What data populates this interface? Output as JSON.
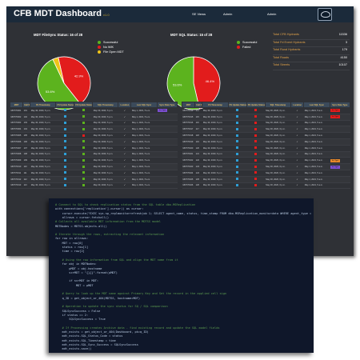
{
  "dashboard": {
    "title": "CFB MDT Dashboard",
    "title_suffix": "v1.0",
    "nav": [
      "SE Views",
      "Admin",
      "Admin"
    ],
    "logo_icon": "shield-logo-icon",
    "charts": [
      {
        "title": "MDT FileSync Status: 16 of 28",
        "legend": [
          {
            "label": "Successful",
            "color": "#5cb31e"
          },
          {
            "label": "No WIK",
            "color": "#e21c1c"
          },
          {
            "label": "File Open MDT",
            "color": "#f0c418"
          }
        ],
        "slices": [
          {
            "label": "42.9%",
            "value": 42.9,
            "color": "#e21c1c"
          },
          {
            "label": "53.6%",
            "value": 53.6,
            "color": "#5cb31e"
          },
          {
            "label": "",
            "value": 3.5,
            "color": "#f0c418"
          }
        ]
      },
      {
        "title": "MDT SQL Status: 15 of 28",
        "legend": [
          {
            "label": "Successful",
            "color": "#5cb31e"
          },
          {
            "label": "Failed",
            "color": "#e21c1c"
          }
        ],
        "slices": [
          {
            "label": "46.4%",
            "value": 46.4,
            "color": "#e21c1c"
          },
          {
            "label": "53.6%",
            "value": 53.6,
            "color": "#5cb31e"
          }
        ]
      }
    ],
    "stats": [
      {
        "label": "Total CFB Hydrants",
        "value": "11536"
      },
      {
        "label": "Total Fd Event Hydrants",
        "value": "3"
      },
      {
        "label": "Total Rural Hydrants",
        "value": "179"
      },
      {
        "label": "Total Roads",
        "value": "4150"
      },
      {
        "label": "Total Streets",
        "value": "10107"
      }
    ],
    "columns": [
      "MDT",
      "Call Sign",
      "FS Timestamp",
      "FS Update Status",
      "FS Update Status",
      "SQL Timestamp",
      "Location",
      "Last SQL Sync",
      "Sync Data Type"
    ],
    "left_rows": [
      {
        "mdt": "MDT70001",
        "call": "101",
        "fs_time": "May 30, 2020, 6 p.m.",
        "s1": "#2e9fd6",
        "s2": "#5cb31e",
        "sql_time": "May 30, 2020, 6 p.m.",
        "loc": "#5cb31e",
        "last": "May 1, 2021, 5 a.m.",
        "tag": "Inc Type",
        "tagc": "#7c4fd1"
      },
      {
        "mdt": "MDT70002",
        "call": "102",
        "fs_time": "May 30, 2020, 6 p.m.",
        "s1": "#2e9fd6",
        "s2": "#5cb31e",
        "sql_time": "May 30, 2020, 6 p.m.",
        "loc": "#5cb31e",
        "last": "May 1, 2021, 5 a.m.",
        "tag": "",
        "tagc": ""
      },
      {
        "mdt": "MDT70003",
        "call": "103",
        "fs_time": "May 30, 2020, 6 p.m.",
        "s1": "#2e9fd6",
        "s2": "#5cb31e",
        "sql_time": "May 30, 2020, 6 p.m.",
        "loc": "#5cb31e",
        "last": "May 1, 2021, 5 a.m.",
        "tag": "",
        "tagc": ""
      },
      {
        "mdt": "MDT70004",
        "call": "104",
        "fs_time": "May 30, 2020, 6 p.m.",
        "s1": "#2e9fd6",
        "s2": "#5cb31e",
        "sql_time": "May 30, 2020, 6 p.m.",
        "loc": "#5cb31e",
        "last": "May 1, 2021, 5 a.m.",
        "tag": "",
        "tagc": ""
      },
      {
        "mdt": "MDT70005",
        "call": "105",
        "fs_time": "May 30, 2020, 6 p.m.",
        "s1": "#2e9fd6",
        "s2": "#e21c1c",
        "sql_time": "May 30, 2020, 6 p.m.",
        "loc": "#5cb31e",
        "last": "May 1, 2021, 5 a.m.",
        "tag": "",
        "tagc": ""
      },
      {
        "mdt": "MDT70006",
        "call": "106",
        "fs_time": "May 30, 2020, 6 p.m.",
        "s1": "#2e9fd6",
        "s2": "#5cb31e",
        "sql_time": "May 30, 2020, 6 p.m.",
        "loc": "#5cb31e",
        "last": "May 1, 2021, 5 a.m.",
        "tag": "",
        "tagc": ""
      },
      {
        "mdt": "MDT70007",
        "call": "107",
        "fs_time": "May 30, 2020, 6 p.m.",
        "s1": "#2e9fd6",
        "s2": "#5cb31e",
        "sql_time": "May 30, 2020, 6 p.m.",
        "loc": "#5cb31e",
        "last": "May 1, 2021, 5 a.m.",
        "tag": "",
        "tagc": ""
      },
      {
        "mdt": "MDT70008",
        "call": "108",
        "fs_time": "May 30, 2020, 6 p.m.",
        "s1": "#2e9fd6",
        "s2": "#5cb31e",
        "sql_time": "May 30, 2020, 6 p.m.",
        "loc": "#5cb31e",
        "last": "May 1, 2021, 5 a.m.",
        "tag": "",
        "tagc": ""
      },
      {
        "mdt": "MDT70009",
        "call": "109",
        "fs_time": "May 30, 2020, 6 p.m.",
        "s1": "#2e9fd6",
        "s2": "#5cb31e",
        "sql_time": "May 30, 2020, 6 p.m.",
        "loc": "#5cb31e",
        "last": "May 1, 2021, 5 a.m.",
        "tag": "",
        "tagc": ""
      },
      {
        "mdt": "MDT70010",
        "call": "110",
        "fs_time": "May 30, 2020, 6 p.m.",
        "s1": "#2e9fd6",
        "s2": "#5cb31e",
        "sql_time": "May 30, 2020, 6 p.m.",
        "loc": "#5cb31e",
        "last": "May 1, 2021, 5 a.m.",
        "tag": "",
        "tagc": ""
      },
      {
        "mdt": "MDT70011",
        "call": "111",
        "fs_time": "May 30, 2020, 6 p.m.",
        "s1": "#2e9fd6",
        "s2": "#5cb31e",
        "sql_time": "May 30, 2020, 6 p.m.",
        "loc": "#5cb31e",
        "last": "May 1, 2021, 5 a.m.",
        "tag": "",
        "tagc": ""
      },
      {
        "mdt": "MDT70012",
        "call": "112",
        "fs_time": "May 30, 2020, 6 p.m.",
        "s1": "#2e9fd6",
        "s2": "#5cb31e",
        "sql_time": "May 30, 2020, 6 p.m.",
        "loc": "#5cb31e",
        "last": "May 1, 2021, 5 a.m.",
        "tag": "",
        "tagc": ""
      },
      {
        "mdt": "MDT70013",
        "call": "113",
        "fs_time": "May 30, 2020, 6 p.m.",
        "s1": "#2e9fd6",
        "s2": "#5cb31e",
        "sql_time": "May 30, 2020, 6 p.m.",
        "loc": "#5cb31e",
        "last": "May 1, 2021, 5 a.m.",
        "tag": "",
        "tagc": ""
      }
    ],
    "right_rows": [
      {
        "mdt": "MDT70014",
        "call": "114",
        "fs_time": "May 30, 2020, 6 p.m.",
        "s1": "#2e9fd6",
        "s2": "#e21c1c",
        "sql_time": "May 30, 2020, 6 p.m.",
        "loc": "#5cb31e",
        "last": "May 1, 2021, 5 a.m.",
        "tag": "Inc Type",
        "tagc": "#e21c1c"
      },
      {
        "mdt": "MDT70015",
        "call": "115",
        "fs_time": "May 30, 2020, 6 p.m.",
        "s1": "#2e9fd6",
        "s2": "#e21c1c",
        "sql_time": "May 30, 2020, 6 p.m.",
        "loc": "#5cb31e",
        "last": "May 1, 2021, 5 a.m.",
        "tag": "Inc Type",
        "tagc": "#e21c1c"
      },
      {
        "mdt": "MDT70016",
        "call": "116",
        "fs_time": "May 30, 2020, 6 p.m.",
        "s1": "#2e9fd6",
        "s2": "#e21c1c",
        "sql_time": "May 30, 2020, 6 p.m.",
        "loc": "#5cb31e",
        "last": "May 1, 2021, 5 a.m.",
        "tag": "",
        "tagc": ""
      },
      {
        "mdt": "MDT70017",
        "call": "117",
        "fs_time": "May 30, 2020, 6 p.m.",
        "s1": "#2e9fd6",
        "s2": "#e21c1c",
        "sql_time": "May 30, 2020, 6 p.m.",
        "loc": "#5cb31e",
        "last": "May 1, 2021, 5 a.m.",
        "tag": "",
        "tagc": ""
      },
      {
        "mdt": "MDT70018",
        "call": "118",
        "fs_time": "May 30, 2020, 6 p.m.",
        "s1": "#2e9fd6",
        "s2": "#e21c1c",
        "sql_time": "May 30, 2020, 6 p.m.",
        "loc": "#5cb31e",
        "last": "May 1, 2021, 5 a.m.",
        "tag": "",
        "tagc": ""
      },
      {
        "mdt": "MDT70019",
        "call": "119",
        "fs_time": "May 30, 2020, 6 p.m.",
        "s1": "#2e9fd6",
        "s2": "#e21c1c",
        "sql_time": "May 30, 2020, 6 p.m.",
        "loc": "#5cb31e",
        "last": "May 1, 2021, 5 a.m.",
        "tag": "",
        "tagc": ""
      },
      {
        "mdt": "MDT70020",
        "call": "120",
        "fs_time": "May 30, 2020, 6 p.m.",
        "s1": "#2e9fd6",
        "s2": "#e21c1c",
        "sql_time": "May 30, 2020, 6 p.m.",
        "loc": "#5cb31e",
        "last": "May 1, 2021, 5 a.m.",
        "tag": "",
        "tagc": ""
      },
      {
        "mdt": "MDT70021",
        "call": "121",
        "fs_time": "May 30, 2020, 6 p.m.",
        "s1": "#2e9fd6",
        "s2": "#e21c1c",
        "sql_time": "May 30, 2020, 6 p.m.",
        "loc": "#5cb31e",
        "last": "May 1, 2021, 5 a.m.",
        "tag": "",
        "tagc": ""
      },
      {
        "mdt": "MDT70022",
        "call": "122",
        "fs_time": "May 30, 2020, 6 p.m.",
        "s1": "#2e9fd6",
        "s2": "#e21c1c",
        "sql_time": "May 30, 2020, 6 p.m.",
        "loc": "#5cb31e",
        "last": "May 1, 2021, 5 a.m.",
        "tag": "Inc Type",
        "tagc": "#e8882a"
      },
      {
        "mdt": "MDT70023",
        "call": "123",
        "fs_time": "May 30, 2020, 6 p.m.",
        "s1": "#2e9fd6",
        "s2": "#e21c1c",
        "sql_time": "May 30, 2020, 6 p.m.",
        "loc": "#5cb31e",
        "last": "May 1, 2021, 5 a.m.",
        "tag": "Inc Type",
        "tagc": "#7c4fd1"
      },
      {
        "mdt": "MDT70024",
        "call": "124",
        "fs_time": "May 30, 2020, 6 p.m.",
        "s1": "#2e9fd6",
        "s2": "#e21c1c",
        "sql_time": "May 30, 2020, 6 p.m.",
        "loc": "#5cb31e",
        "last": "May 1, 2021, 5 a.m.",
        "tag": "",
        "tagc": ""
      },
      {
        "mdt": "MDT70025",
        "call": "125",
        "fs_time": "May 30, 2020, 6 p.m.",
        "s1": "#2e9fd6",
        "s2": "#e21c1c",
        "sql_time": "May 30, 2020, 6 p.m.",
        "loc": "#5cb31e",
        "last": "May 1, 2021, 5 a.m.",
        "tag": "",
        "tagc": ""
      },
      {
        "mdt": "MDT70026",
        "call": "126",
        "fs_time": "May 30, 2020, 6 p.m.",
        "s1": "#2e9fd6",
        "s2": "#e21c1c",
        "sql_time": "May 30, 2020, 6 p.m.",
        "loc": "#5cb31e",
        "last": "May 1, 2021, 5 a.m.",
        "tag": "",
        "tagc": ""
      }
    ]
  },
  "code": {
    "lines": [
      {
        "t": "# Connect to SQL to check replication status from the SQL table dbo.MSReplication",
        "k": "com"
      },
      {
        "t": "with connections['replication'].cursor() as cursor:",
        "k": "code"
      },
      {
        "t": "    cursor.execute(\"EXEC sys.sp_replmonitorrefreshjob 1; SELECT agent_name, status, time_stamp FROM dbo.MSReplication_monitordata WHERE agent_type = '3'\")",
        "k": "code"
      },
      {
        "t": "    allrows = cursor.fetchall()",
        "k": "code"
      },
      {
        "t": "# Collects all available MDT information from the MDTSS model",
        "k": "com"
      },
      {
        "t": "MDTNodes = MDTSS.objects.all()",
        "k": "code"
      },
      {
        "t": "",
        "k": "code"
      },
      {
        "t": "# Iterate through the rows, extracting the relevant information",
        "k": "com"
      },
      {
        "t": "for row in allrows:",
        "k": "code"
      },
      {
        "t": "    MDT = row[0]",
        "k": "code"
      },
      {
        "t": "    status = row[1]",
        "k": "code"
      },
      {
        "t": "    time = row[2]",
        "k": "code"
      },
      {
        "t": "",
        "k": "code"
      },
      {
        "t": "    # Using the row information from SQL and align the MDT name from it",
        "k": "com"
      },
      {
        "t": "    for obj in MDTNodes:",
        "k": "code"
      },
      {
        "t": "        pMDT = obj.hostname",
        "k": "code"
      },
      {
        "t": "        scrMDT = \"{}{}\".format(pMDT)",
        "k": "code"
      },
      {
        "t": "",
        "k": "code"
      },
      {
        "t": "        if scrMDT in MDT:",
        "k": "code"
      },
      {
        "t": "            MDT = pMDT",
        "k": "code"
      },
      {
        "t": "",
        "k": "code"
      },
      {
        "t": "    # Query to look up the MDT name against Primary Key and Set the record in the applied cell sign",
        "k": "com"
      },
      {
        "t": "    q_ID = get_object_or_404(MDTSS, hostname=MDT)",
        "k": "code"
      },
      {
        "t": "",
        "k": "code"
      },
      {
        "t": "    # Operation to update the sync status for SQ / SQL comparison",
        "k": "com"
      },
      {
        "t": "    SQLSyncSuccess = False",
        "k": "code"
      },
      {
        "t": "    if status == 2:",
        "k": "code"
      },
      {
        "t": "        SQLSyncSuccess = True",
        "k": "code"
      },
      {
        "t": "",
        "k": "code"
      },
      {
        "t": "    # If Processing creates Archive data - find existing record and update the SQL model fields",
        "k": "com"
      },
      {
        "t": "    mdt_exists = get_object_or_404(Dashboard, pk=q_ID)",
        "k": "code"
      },
      {
        "t": "    mdt_exists.SQL_Status_Code = status",
        "k": "code"
      },
      {
        "t": "    mdt_exists.SQL_Timestamp = time",
        "k": "code"
      },
      {
        "t": "    mdt_exists.SQL_Sync_Success = SQLSyncSuccess",
        "k": "code"
      },
      {
        "t": "    mdt_exists.save()",
        "k": "code"
      }
    ]
  }
}
